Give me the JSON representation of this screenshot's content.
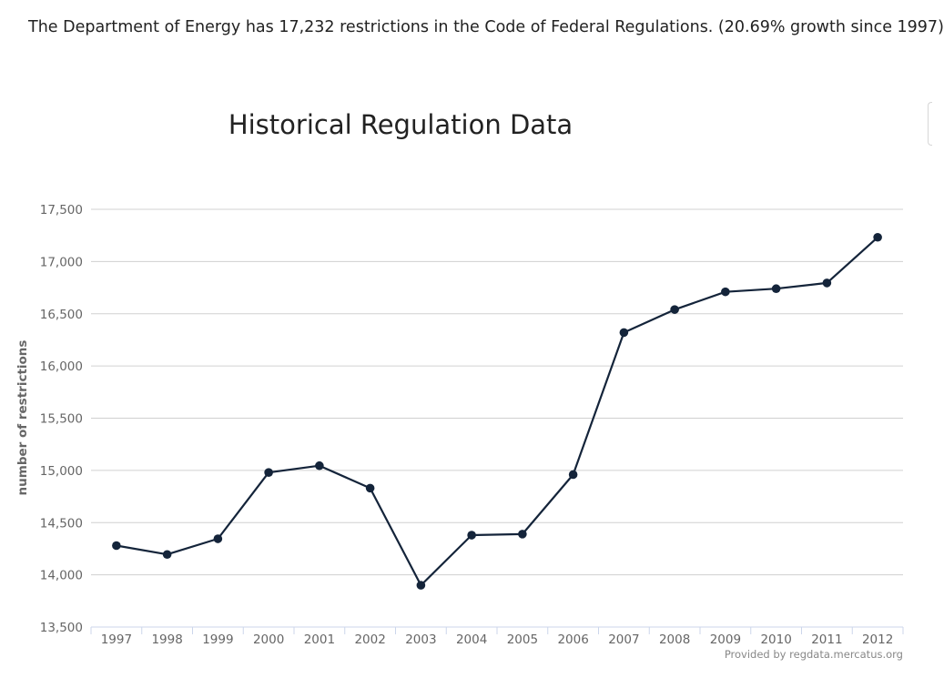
{
  "summary": {
    "text": "The Department of Energy has 17,232 restrictions in the Code of Federal Regulations. (20.69% growth since 1997)"
  },
  "colors": {
    "series": "#14243a",
    "grid": "#d0d0d0",
    "axis_text": "#666666",
    "title": "#222222"
  },
  "chart_data": {
    "type": "line",
    "title": "Historical Regulation Data",
    "xlabel": "",
    "ylabel": "number of restrictions",
    "categories": [
      "1997",
      "1998",
      "1999",
      "2000",
      "2001",
      "2002",
      "2003",
      "2004",
      "2005",
      "2006",
      "2007",
      "2008",
      "2009",
      "2010",
      "2011",
      "2012"
    ],
    "values": [
      14280,
      14195,
      14345,
      14980,
      15045,
      14830,
      13900,
      14380,
      14390,
      14960,
      16320,
      16540,
      16710,
      16740,
      16795,
      17232
    ],
    "ylim": [
      13500,
      17500
    ],
    "yticks": [
      13500,
      14000,
      14500,
      15000,
      15500,
      16000,
      16500,
      17000,
      17500
    ],
    "ytick_labels": [
      "13,500",
      "14,000",
      "14,500",
      "15,000",
      "15,500",
      "16,000",
      "16,500",
      "17,000",
      "17,500"
    ],
    "grid": true,
    "legend": "none",
    "credits": "Provided by regdata.mercatus.org"
  }
}
